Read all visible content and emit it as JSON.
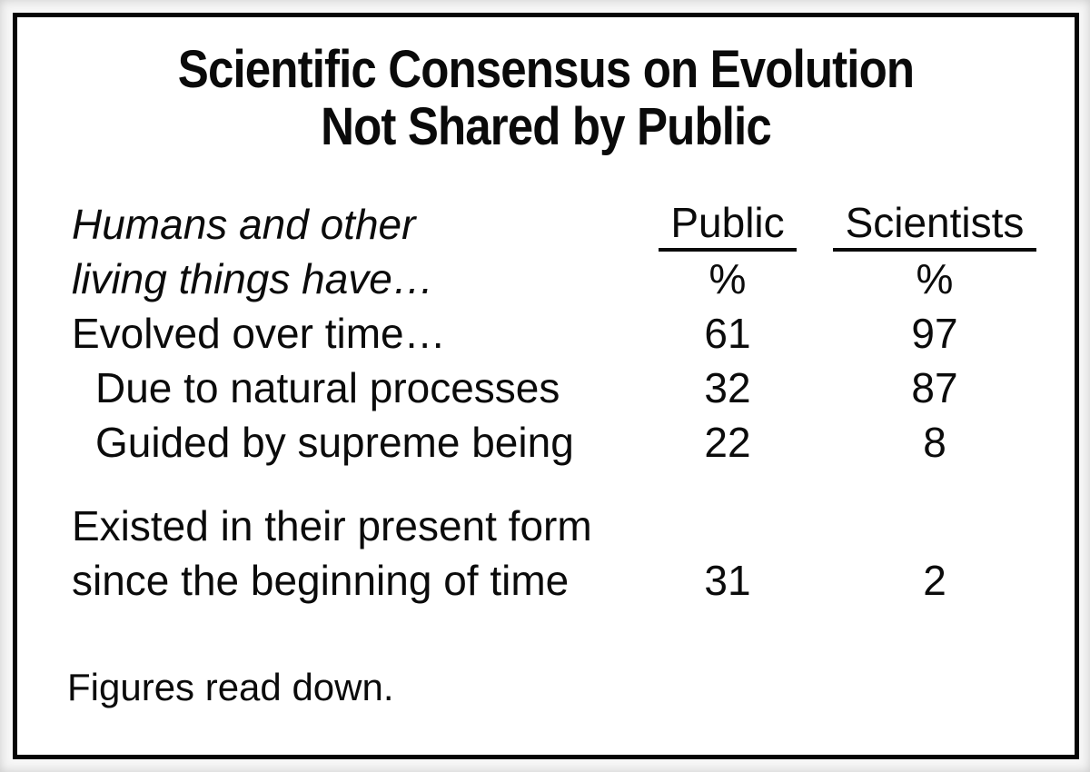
{
  "title": {
    "line1": "Scientific Consensus on Evolution",
    "line2": "Not Shared by Public"
  },
  "table": {
    "stub": {
      "line1": "Humans and other",
      "line2": "living things have…"
    },
    "col_public": {
      "label": "Public",
      "unit": "%"
    },
    "col_scientists": {
      "label": "Scientists",
      "unit": "%"
    },
    "rows": [
      {
        "label": "Evolved over time…",
        "public": "61",
        "scientists": "97"
      },
      {
        "label": "Due to natural processes",
        "public": "32",
        "scientists": "87"
      },
      {
        "label": "Guided by supreme being",
        "public": "22",
        "scientists": "8"
      },
      {
        "label_line1": "Existed in their present form",
        "label_line2": "since the beginning of time",
        "public": "31",
        "scientists": "2"
      }
    ]
  },
  "footnote": "Figures read down.",
  "colors": {
    "text": "#0a0a0a",
    "border": "#050505",
    "box_background": "#ffffff",
    "page_background": "#f7f7f7"
  },
  "chart_data": {
    "type": "table",
    "title": "Scientific Consensus on Evolution Not Shared by Public",
    "stub_heading": "Humans and other living things have…",
    "columns": [
      "Public %",
      "Scientists %"
    ],
    "rows": [
      {
        "label": "Evolved over time…",
        "indent": false,
        "public": 61,
        "scientists": 97
      },
      {
        "label": "Due to natural processes",
        "indent": true,
        "public": 32,
        "scientists": 87
      },
      {
        "label": "Guided by supreme being",
        "indent": true,
        "public": 22,
        "scientists": 8
      },
      {
        "label": "Existed in their present form since the beginning of time",
        "indent": false,
        "public": 31,
        "scientists": 2
      }
    ],
    "note": "Figures read down.",
    "layout": {
      "column_headers_underlined": true,
      "values_read_down_columns": true
    }
  }
}
